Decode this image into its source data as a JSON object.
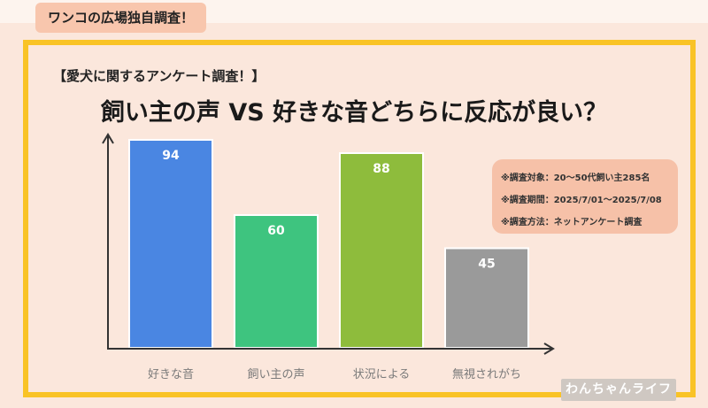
{
  "header": {
    "tag": "ワンコの広場独自調査！"
  },
  "survey_label": "【愛犬に関するアンケート調査！】",
  "chart_data": {
    "type": "bar",
    "title": "飼い主の声 VS 好きな音どちらに反応が良い？",
    "categories": [
      "好きな音",
      "飼い主の声",
      "状況による",
      "無視されがち"
    ],
    "values": [
      94,
      60,
      88,
      45
    ],
    "colors": [
      "#4a86e2",
      "#3ec47f",
      "#8ebc3c",
      "#9a9a9a"
    ],
    "ylim": [
      0,
      100
    ],
    "grid": false,
    "legend": "none",
    "data_labels": true
  },
  "info": {
    "lines": [
      "※調査対象：20～50代飼い主285名",
      "※調査期間：2025/7/01～2025/7/08",
      "※調査方法：ネットアンケート調査"
    ]
  },
  "logo": {
    "text": "わんちゃんライフ"
  }
}
